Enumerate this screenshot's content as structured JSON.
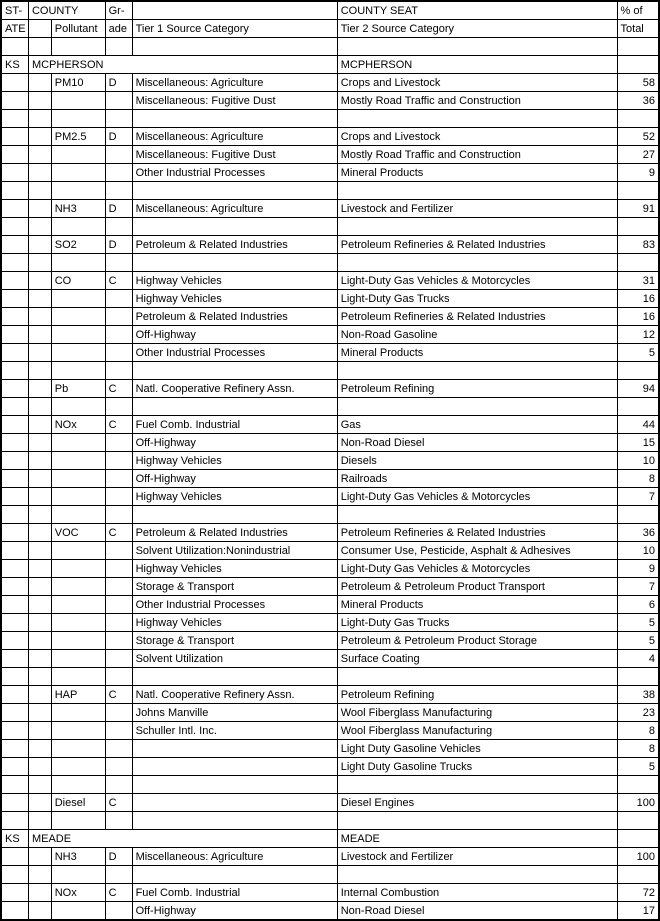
{
  "header": {
    "r1": {
      "state": "ST-",
      "county": "COUNTY",
      "grade": "Gr-",
      "tier1": "",
      "county_seat": "COUNTY SEAT",
      "pct": "% of"
    },
    "r2": {
      "state": "ATE",
      "pollutant": "Pollutant",
      "grade": "ade",
      "tier1": "Tier 1 Source Category",
      "tier2": "Tier 2 Source Category",
      "pct": "Total"
    }
  },
  "rows": [
    {
      "state": "",
      "sub": "",
      "poll": "",
      "grade": "",
      "t1": "",
      "t2": "",
      "pct": ""
    },
    {
      "state": "KS",
      "sub": "",
      "poll": "MCPHERSON",
      "grade": "",
      "t1": "",
      "t2": "MCPHERSON",
      "pct": "",
      "county": true
    },
    {
      "state": "",
      "sub": "",
      "poll": "PM10",
      "grade": "D",
      "t1": "Miscellaneous: Agriculture",
      "t2": "Crops and Livestock",
      "pct": "58"
    },
    {
      "state": "",
      "sub": "",
      "poll": "",
      "grade": "",
      "t1": "Miscellaneous: Fugitive Dust",
      "t2": "Mostly Road Traffic and Construction",
      "pct": "36"
    },
    {
      "state": "",
      "sub": "",
      "poll": "",
      "grade": "",
      "t1": "",
      "t2": "",
      "pct": ""
    },
    {
      "state": "",
      "sub": "",
      "poll": "PM2.5",
      "grade": "D",
      "t1": "Miscellaneous: Agriculture",
      "t2": "Crops and Livestock",
      "pct": "52"
    },
    {
      "state": "",
      "sub": "",
      "poll": "",
      "grade": "",
      "t1": "Miscellaneous: Fugitive Dust",
      "t2": "Mostly Road Traffic and Construction",
      "pct": "27"
    },
    {
      "state": "",
      "sub": "",
      "poll": "",
      "grade": "",
      "t1": "Other Industrial Processes",
      "t2": "Mineral Products",
      "pct": "9"
    },
    {
      "state": "",
      "sub": "",
      "poll": "",
      "grade": "",
      "t1": "",
      "t2": "",
      "pct": ""
    },
    {
      "state": "",
      "sub": "",
      "poll": "NH3",
      "grade": "D",
      "t1": "Miscellaneous: Agriculture",
      "t2": "Livestock and Fertilizer",
      "pct": "91"
    },
    {
      "state": "",
      "sub": "",
      "poll": "",
      "grade": "",
      "t1": "",
      "t2": "",
      "pct": ""
    },
    {
      "state": "",
      "sub": "",
      "poll": "SO2",
      "grade": "D",
      "t1": "Petroleum & Related Industries",
      "t2": "Petroleum Refineries & Related Industries",
      "pct": "83"
    },
    {
      "state": "",
      "sub": "",
      "poll": "",
      "grade": "",
      "t1": "",
      "t2": "",
      "pct": ""
    },
    {
      "state": "",
      "sub": "",
      "poll": "CO",
      "grade": "C",
      "t1": "Highway Vehicles",
      "t2": "Light-Duty Gas Vehicles & Motorcycles",
      "pct": "31"
    },
    {
      "state": "",
      "sub": "",
      "poll": "",
      "grade": "",
      "t1": "Highway Vehicles",
      "t2": "Light-Duty Gas Trucks",
      "pct": "16"
    },
    {
      "state": "",
      "sub": "",
      "poll": "",
      "grade": "",
      "t1": "Petroleum & Related Industries",
      "t2": "Petroleum Refineries & Related Industries",
      "pct": "16"
    },
    {
      "state": "",
      "sub": "",
      "poll": "",
      "grade": "",
      "t1": "Off-Highway",
      "t2": "Non-Road Gasoline",
      "pct": "12"
    },
    {
      "state": "",
      "sub": "",
      "poll": "",
      "grade": "",
      "t1": "Other Industrial Processes",
      "t2": "Mineral Products",
      "pct": "5"
    },
    {
      "state": "",
      "sub": "",
      "poll": "",
      "grade": "",
      "t1": "",
      "t2": "",
      "pct": ""
    },
    {
      "state": "",
      "sub": "",
      "poll": "Pb",
      "grade": "C",
      "t1": "Natl. Cooperative Refinery Assn.",
      "t2": "Petroleum Refining",
      "pct": "94"
    },
    {
      "state": "",
      "sub": "",
      "poll": "",
      "grade": "",
      "t1": "",
      "t2": "",
      "pct": ""
    },
    {
      "state": "",
      "sub": "",
      "poll": "NOx",
      "grade": "C",
      "t1": "Fuel Comb. Industrial",
      "t2": "Gas",
      "pct": "44"
    },
    {
      "state": "",
      "sub": "",
      "poll": "",
      "grade": "",
      "t1": "Off-Highway",
      "t2": "Non-Road Diesel",
      "pct": "15"
    },
    {
      "state": "",
      "sub": "",
      "poll": "",
      "grade": "",
      "t1": "Highway Vehicles",
      "t2": "Diesels",
      "pct": "10"
    },
    {
      "state": "",
      "sub": "",
      "poll": "",
      "grade": "",
      "t1": "Off-Highway",
      "t2": "Railroads",
      "pct": "8"
    },
    {
      "state": "",
      "sub": "",
      "poll": "",
      "grade": "",
      "t1": "Highway Vehicles",
      "t2": "Light-Duty Gas Vehicles & Motorcycles",
      "pct": "7"
    },
    {
      "state": "",
      "sub": "",
      "poll": "",
      "grade": "",
      "t1": "",
      "t2": "",
      "pct": ""
    },
    {
      "state": "",
      "sub": "",
      "poll": "VOC",
      "grade": "C",
      "t1": "Petroleum & Related Industries",
      "t2": "Petroleum Refineries & Related Industries",
      "pct": "36"
    },
    {
      "state": "",
      "sub": "",
      "poll": "",
      "grade": "",
      "t1": "Solvent Utilization:Nonindustrial",
      "t2": "Consumer Use, Pesticide, Asphalt & Adhesives",
      "pct": "10"
    },
    {
      "state": "",
      "sub": "",
      "poll": "",
      "grade": "",
      "t1": "Highway Vehicles",
      "t2": "Light-Duty Gas Vehicles & Motorcycles",
      "pct": "9"
    },
    {
      "state": "",
      "sub": "",
      "poll": "",
      "grade": "",
      "t1": "Storage & Transport",
      "t2": "Petroleum & Petroleum Product Transport",
      "pct": "7"
    },
    {
      "state": "",
      "sub": "",
      "poll": "",
      "grade": "",
      "t1": "Other Industrial Processes",
      "t2": "Mineral Products",
      "pct": "6"
    },
    {
      "state": "",
      "sub": "",
      "poll": "",
      "grade": "",
      "t1": "Highway Vehicles",
      "t2": "Light-Duty Gas Trucks",
      "pct": "5"
    },
    {
      "state": "",
      "sub": "",
      "poll": "",
      "grade": "",
      "t1": "Storage & Transport",
      "t2": "Petroleum & Petroleum Product Storage",
      "pct": "5"
    },
    {
      "state": "",
      "sub": "",
      "poll": "",
      "grade": "",
      "t1": "Solvent Utilization",
      "t2": "Surface Coating",
      "pct": "4"
    },
    {
      "state": "",
      "sub": "",
      "poll": "",
      "grade": "",
      "t1": "",
      "t2": "",
      "pct": ""
    },
    {
      "state": "",
      "sub": "",
      "poll": "HAP",
      "grade": "C",
      "t1": "Natl. Cooperative Refinery Assn.",
      "t2": "Petroleum Refining",
      "pct": "38"
    },
    {
      "state": "",
      "sub": "",
      "poll": "",
      "grade": "",
      "t1": "Johns Manville",
      "t2": "Wool Fiberglass Manufacturing",
      "pct": "23"
    },
    {
      "state": "",
      "sub": "",
      "poll": "",
      "grade": "",
      "t1": "Schuller Intl. Inc.",
      "t2": "Wool Fiberglass Manufacturing",
      "pct": "8"
    },
    {
      "state": "",
      "sub": "",
      "poll": "",
      "grade": "",
      "t1": "",
      "t2": "Light Duty Gasoline Vehicles",
      "pct": "8"
    },
    {
      "state": "",
      "sub": "",
      "poll": "",
      "grade": "",
      "t1": "",
      "t2": "Light Duty Gasoline Trucks",
      "pct": "5"
    },
    {
      "state": "",
      "sub": "",
      "poll": "",
      "grade": "",
      "t1": "",
      "t2": "",
      "pct": ""
    },
    {
      "state": "",
      "sub": "",
      "poll": "Diesel",
      "grade": "C",
      "t1": "",
      "t2": "Diesel Engines",
      "pct": "100"
    },
    {
      "state": "",
      "sub": "",
      "poll": "",
      "grade": "",
      "t1": "",
      "t2": "",
      "pct": ""
    },
    {
      "state": "KS",
      "sub": "",
      "poll": "MEADE",
      "grade": "",
      "t1": "",
      "t2": "MEADE",
      "pct": "",
      "county": true
    },
    {
      "state": "",
      "sub": "",
      "poll": "NH3",
      "grade": "D",
      "t1": "Miscellaneous: Agriculture",
      "t2": "Livestock and Fertilizer",
      "pct": "100"
    },
    {
      "state": "",
      "sub": "",
      "poll": "",
      "grade": "",
      "t1": "",
      "t2": "",
      "pct": ""
    },
    {
      "state": "",
      "sub": "",
      "poll": "NOx",
      "grade": "C",
      "t1": "Fuel Comb. Industrial",
      "t2": "Internal Combustion",
      "pct": "72"
    },
    {
      "state": "",
      "sub": "",
      "poll": "",
      "grade": "",
      "t1": "Off-Highway",
      "t2": "Non-Road Diesel",
      "pct": "17"
    }
  ]
}
